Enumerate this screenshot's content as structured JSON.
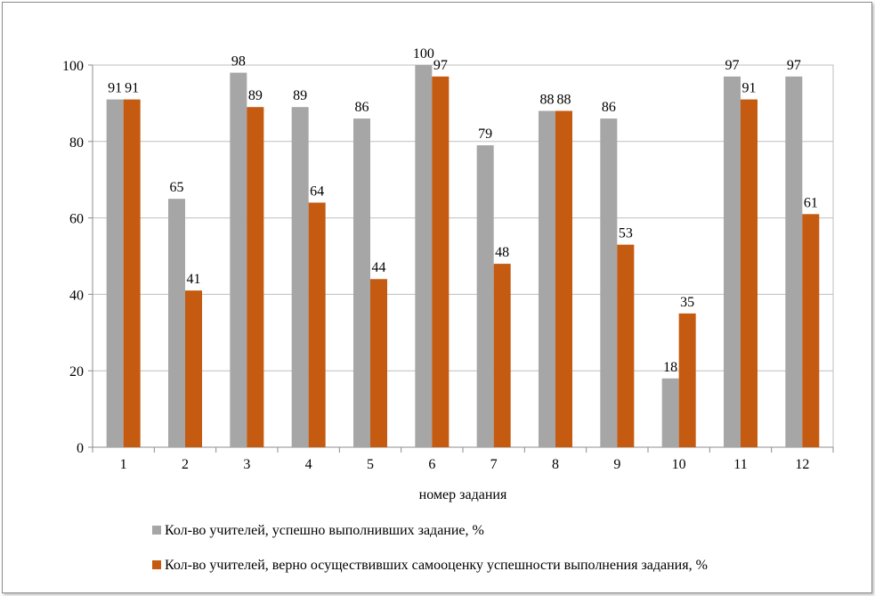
{
  "chart_data": {
    "type": "bar",
    "categories": [
      "1",
      "2",
      "3",
      "4",
      "5",
      "6",
      "7",
      "8",
      "9",
      "10",
      "11",
      "12"
    ],
    "series": [
      {
        "name": "Кол-во учителей, успешно выполнивших задание, %",
        "color": "#a6a6a6",
        "values": [
          91,
          65,
          98,
          89,
          86,
          100,
          79,
          88,
          86,
          18,
          97,
          97
        ]
      },
      {
        "name": "Кол-во учителей, верно осуществивших самооценку успешности выполнения задания, %",
        "color": "#c55a11",
        "values": [
          91,
          41,
          89,
          64,
          44,
          97,
          48,
          88,
          53,
          35,
          91,
          61
        ]
      }
    ],
    "xlabel": "номер задания",
    "ylabel": "",
    "ylim": [
      0,
      100
    ],
    "yticks": [
      0,
      20,
      40,
      60,
      80,
      100
    ],
    "grid": true,
    "legend_position": "bottom"
  }
}
